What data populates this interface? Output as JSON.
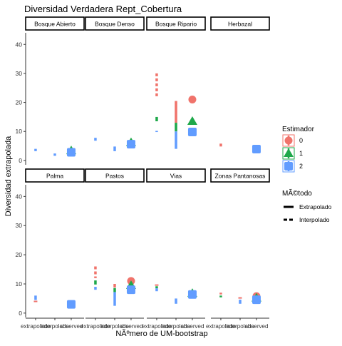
{
  "chart_data": {
    "type": "scatter",
    "title": "Diversidad Verdadera Rept_Cobertura",
    "xlabel": "NÃºmero de UM-bootstrap",
    "ylabel": "Diversidad extrapolada",
    "categories": [
      "extrapolated",
      "interpolated",
      "observed"
    ],
    "tick_labels": [
      "extrapolado",
      "interpolado",
      "observed"
    ],
    "ylim": [
      -1.5,
      44
    ],
    "yticks": [
      0,
      10,
      20,
      30,
      40
    ],
    "grid": false,
    "legend": {
      "position": "right",
      "color_title": "Estimador",
      "color_entries": [
        "0",
        "1",
        "2"
      ],
      "linetype_title": "MÃ©todo",
      "linetype_entries": [
        "Extrapolado",
        "Interpolado"
      ]
    },
    "series": [
      {
        "name": "0",
        "color": "#F0736B",
        "shape": "circle"
      },
      {
        "name": "1",
        "color": "#1EA84A",
        "shape": "triangle"
      },
      {
        "name": "2",
        "color": "#619CFF",
        "shape": "square"
      }
    ],
    "panels": [
      {
        "name": "Bosque Abierto",
        "row": 0,
        "col": 0,
        "marks": [
          {
            "cat": 0,
            "s": 2,
            "type": "seg",
            "y1": 3.2,
            "y2": 4.0
          },
          {
            "cat": 1,
            "s": 2,
            "type": "seg",
            "y1": 1.6,
            "y2": 2.4
          },
          {
            "cat": 2,
            "s": 1,
            "type": "pt",
            "y": 3.4
          },
          {
            "cat": 2,
            "s": 2,
            "type": "pt",
            "y": 2.8
          }
        ]
      },
      {
        "name": "Bosque Denso",
        "row": 0,
        "col": 1,
        "marks": [
          {
            "cat": 0,
            "s": 2,
            "type": "seg",
            "y1": 6.8,
            "y2": 7.8
          },
          {
            "cat": 1,
            "s": 2,
            "type": "seg",
            "y1": 3.2,
            "y2": 4.8
          },
          {
            "cat": 2,
            "s": 1,
            "type": "pt",
            "y": 6.2
          },
          {
            "cat": 2,
            "s": 2,
            "type": "pt",
            "y": 5.6
          }
        ]
      },
      {
        "name": "Bosque Ripario",
        "row": 0,
        "col": 2,
        "marks": [
          {
            "cat": 0,
            "s": 0,
            "type": "dash",
            "y1": 22,
            "y2": 30
          },
          {
            "cat": 0,
            "s": 1,
            "type": "seg",
            "y1": 13.5,
            "y2": 15
          },
          {
            "cat": 0,
            "s": 2,
            "type": "seg",
            "y1": 9.8,
            "y2": 10.2
          },
          {
            "cat": 1,
            "s": 0,
            "type": "seg",
            "y1": 13,
            "y2": 20.5
          },
          {
            "cat": 1,
            "s": 1,
            "type": "seg",
            "y1": 10,
            "y2": 13
          },
          {
            "cat": 1,
            "s": 2,
            "type": "seg",
            "y1": 4,
            "y2": 10
          },
          {
            "cat": 2,
            "s": 0,
            "type": "pt",
            "y": 21
          },
          {
            "cat": 2,
            "s": 1,
            "type": "pt",
            "y": 13.5
          },
          {
            "cat": 2,
            "s": 2,
            "type": "pt",
            "y": 9.8
          }
        ]
      },
      {
        "name": "Herbazal",
        "row": 0,
        "col": 3,
        "marks": [
          {
            "cat": 0,
            "s": 0,
            "type": "dash",
            "y1": 4.4,
            "y2": 5.8
          },
          {
            "cat": 2,
            "s": 2,
            "type": "pt",
            "y": 3.9
          }
        ]
      },
      {
        "name": "Palma",
        "row": 1,
        "col": 0,
        "marks": [
          {
            "cat": 0,
            "s": 2,
            "type": "seg",
            "y1": 4.5,
            "y2": 6.0
          },
          {
            "cat": 0,
            "s": 0,
            "type": "dash",
            "y1": 4.0,
            "y2": 4.0
          },
          {
            "cat": 2,
            "s": 2,
            "type": "pt",
            "y": 3.0
          }
        ]
      },
      {
        "name": "Pastos",
        "row": 1,
        "col": 1,
        "marks": [
          {
            "cat": 0,
            "s": 0,
            "type": "dash",
            "y1": 12,
            "y2": 16
          },
          {
            "cat": 0,
            "s": 1,
            "type": "seg",
            "y1": 9.8,
            "y2": 11.2
          },
          {
            "cat": 0,
            "s": 2,
            "type": "seg",
            "y1": 8.0,
            "y2": 9.0
          },
          {
            "cat": 1,
            "s": 0,
            "type": "seg",
            "y1": 8.8,
            "y2": 10
          },
          {
            "cat": 1,
            "s": 1,
            "type": "seg",
            "y1": 7.2,
            "y2": 8.6
          },
          {
            "cat": 1,
            "s": 2,
            "type": "seg",
            "y1": 2.5,
            "y2": 7.2
          },
          {
            "cat": 2,
            "s": 0,
            "type": "pt",
            "y": 11
          },
          {
            "cat": 2,
            "s": 1,
            "type": "pt",
            "y": 9.5
          },
          {
            "cat": 2,
            "s": 2,
            "type": "pt",
            "y": 8.0
          }
        ]
      },
      {
        "name": "Vias",
        "row": 1,
        "col": 2,
        "marks": [
          {
            "cat": 0,
            "s": 0,
            "type": "dash",
            "y1": 9.2,
            "y2": 9.6
          },
          {
            "cat": 0,
            "s": 1,
            "type": "seg",
            "y1": 8.5,
            "y2": 9.2
          },
          {
            "cat": 0,
            "s": 2,
            "type": "seg",
            "y1": 7.5,
            "y2": 8.5
          },
          {
            "cat": 1,
            "s": 2,
            "type": "seg",
            "y1": 3.2,
            "y2": 5.0
          },
          {
            "cat": 2,
            "s": 1,
            "type": "pt",
            "y": 6.8
          },
          {
            "cat": 2,
            "s": 2,
            "type": "pt",
            "y": 6.4
          }
        ]
      },
      {
        "name": "Zonas Pantanosas",
        "row": 1,
        "col": 3,
        "marks": [
          {
            "cat": 0,
            "s": 0,
            "type": "dash",
            "y1": 6.4,
            "y2": 7.0
          },
          {
            "cat": 0,
            "s": 1,
            "type": "dash",
            "y1": 5.4,
            "y2": 6.0
          },
          {
            "cat": 1,
            "s": 0,
            "type": "dash",
            "y1": 4.8,
            "y2": 5.2
          },
          {
            "cat": 1,
            "s": 2,
            "type": "seg",
            "y1": 3.2,
            "y2": 4.6
          },
          {
            "cat": 2,
            "s": 0,
            "type": "pt",
            "y": 5.8
          },
          {
            "cat": 2,
            "s": 1,
            "type": "pt",
            "y": 5.2
          },
          {
            "cat": 2,
            "s": 2,
            "type": "pt",
            "y": 4.6
          }
        ]
      }
    ]
  }
}
